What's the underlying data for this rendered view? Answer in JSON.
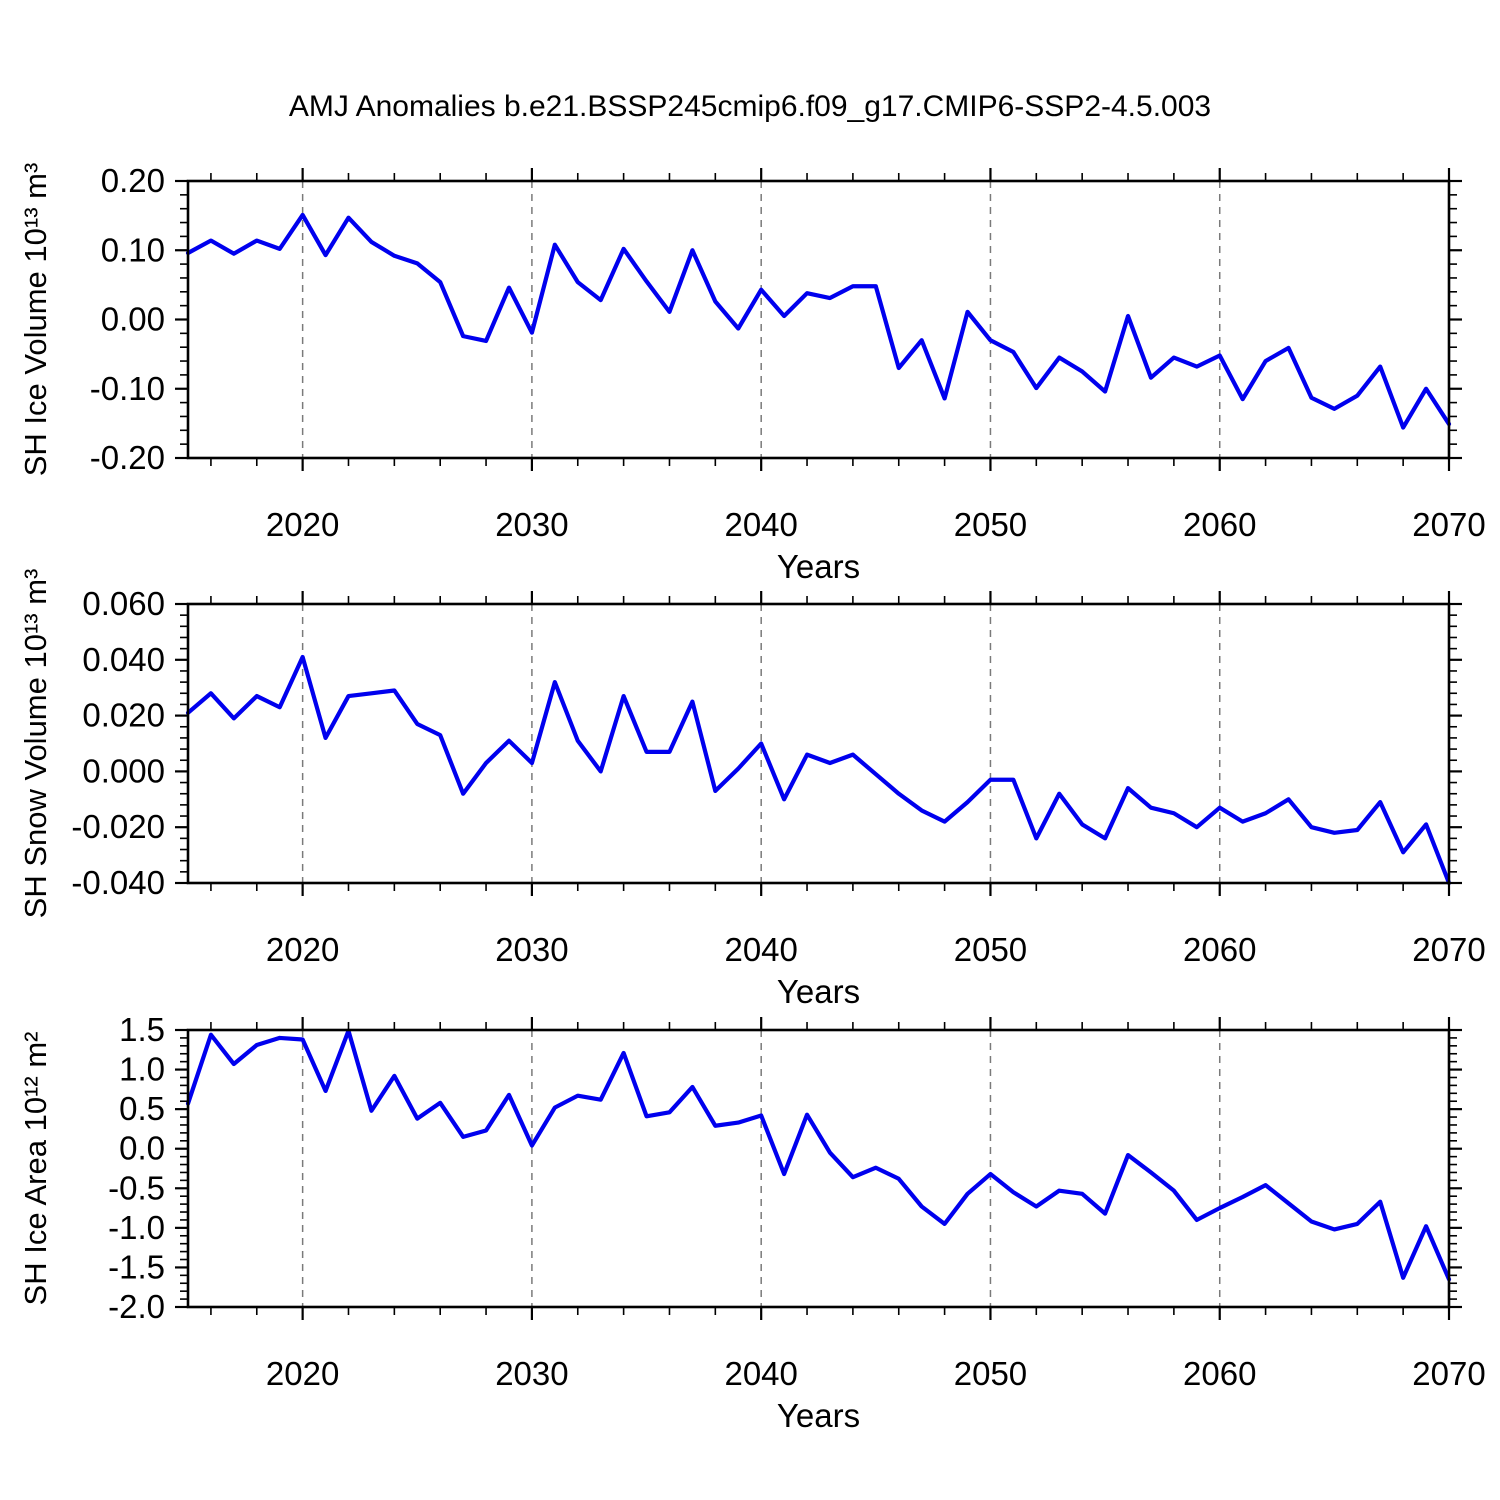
{
  "title": "AMJ Anomalies b.e21.BSSP245cmip6.f09_g17.CMIP6-SSP2-4.5.003",
  "line_color": "#0000EE",
  "grid_color": "#7a7a7a",
  "chart_data": [
    {
      "type": "line",
      "ylabel": "SH Ice Volume 10¹³ m³",
      "xlabel": "Years",
      "x": [
        2015,
        2016,
        2017,
        2018,
        2019,
        2020,
        2021,
        2022,
        2023,
        2024,
        2025,
        2026,
        2027,
        2028,
        2029,
        2030,
        2031,
        2032,
        2033,
        2034,
        2035,
        2036,
        2037,
        2038,
        2039,
        2040,
        2041,
        2042,
        2043,
        2044,
        2045,
        2046,
        2047,
        2048,
        2049,
        2050,
        2051,
        2052,
        2053,
        2054,
        2055,
        2056,
        2057,
        2058,
        2059,
        2060,
        2061,
        2062,
        2063,
        2064,
        2065,
        2066,
        2067,
        2068,
        2069,
        2070
      ],
      "values": [
        0.096,
        0.114,
        0.095,
        0.114,
        0.102,
        0.151,
        0.093,
        0.147,
        0.112,
        0.092,
        0.081,
        0.054,
        -0.024,
        -0.031,
        0.046,
        -0.019,
        0.108,
        0.054,
        0.028,
        0.102,
        0.055,
        0.011,
        0.1,
        0.026,
        -0.013,
        0.043,
        0.005,
        0.038,
        0.031,
        0.048,
        0.048,
        -0.07,
        -0.03,
        -0.114,
        0.011,
        -0.03,
        -0.047,
        -0.099,
        -0.055,
        -0.075,
        -0.104,
        0.005,
        -0.084,
        -0.055,
        -0.068,
        -0.052,
        -0.115,
        -0.06,
        -0.041,
        -0.113,
        -0.129,
        -0.11,
        -0.068,
        -0.156,
        -0.1,
        -0.151
      ],
      "xlim": [
        2015,
        2070
      ],
      "ylim": [
        -0.2,
        0.2
      ],
      "xticks": [
        2020,
        2030,
        2040,
        2050,
        2060,
        2070
      ],
      "xtick_labels": [
        "2020",
        "2030",
        "2040",
        "2050",
        "2060",
        "2070"
      ],
      "xtick_minor_step": 2,
      "ytick_values": [
        0.2,
        0.1,
        0.0,
        -0.1,
        -0.2
      ],
      "ytick_labels": [
        "0.20",
        "0.10",
        "0.00",
        "-0.10",
        "-0.20"
      ],
      "ytick_minor_step": 0.02,
      "grid_x_dashed": [
        2020,
        2030,
        2040,
        2050,
        2060
      ],
      "legend": "none",
      "grid": "vertical-dashed-only"
    },
    {
      "type": "line",
      "ylabel": "SH Snow Volume 10¹³ m³",
      "xlabel": "Years",
      "x": [
        2015,
        2016,
        2017,
        2018,
        2019,
        2020,
        2021,
        2022,
        2023,
        2024,
        2025,
        2026,
        2027,
        2028,
        2029,
        2030,
        2031,
        2032,
        2033,
        2034,
        2035,
        2036,
        2037,
        2038,
        2039,
        2040,
        2041,
        2042,
        2043,
        2044,
        2045,
        2046,
        2047,
        2048,
        2049,
        2050,
        2051,
        2052,
        2053,
        2054,
        2055,
        2056,
        2057,
        2058,
        2059,
        2060,
        2061,
        2062,
        2063,
        2064,
        2065,
        2066,
        2067,
        2068,
        2069,
        2070
      ],
      "values": [
        0.021,
        0.028,
        0.019,
        0.027,
        0.023,
        0.041,
        0.012,
        0.027,
        0.028,
        0.029,
        0.017,
        0.013,
        -0.008,
        0.003,
        0.011,
        0.003,
        0.032,
        0.011,
        0.0,
        0.027,
        0.007,
        0.007,
        0.025,
        -0.007,
        0.001,
        0.01,
        -0.01,
        0.006,
        0.003,
        0.006,
        -0.001,
        -0.008,
        -0.014,
        -0.018,
        -0.011,
        -0.003,
        -0.003,
        -0.024,
        -0.008,
        -0.019,
        -0.024,
        -0.006,
        -0.013,
        -0.015,
        -0.02,
        -0.013,
        -0.018,
        -0.015,
        -0.01,
        -0.02,
        -0.022,
        -0.021,
        -0.011,
        -0.029,
        -0.019,
        -0.04
      ],
      "xlim": [
        2015,
        2070
      ],
      "ylim": [
        -0.04,
        0.06
      ],
      "xticks": [
        2020,
        2030,
        2040,
        2050,
        2060,
        2070
      ],
      "xtick_labels": [
        "2020",
        "2030",
        "2040",
        "2050",
        "2060",
        "2070"
      ],
      "xtick_minor_step": 2,
      "ytick_values": [
        0.06,
        0.04,
        0.02,
        0.0,
        -0.02,
        -0.04
      ],
      "ytick_labels": [
        "0.060",
        "0.040",
        "0.020",
        "0.000",
        "-0.020",
        "-0.040"
      ],
      "ytick_minor_step": 0.004,
      "grid_x_dashed": [
        2020,
        2030,
        2040,
        2050,
        2060
      ],
      "legend": "none",
      "grid": "vertical-dashed-only"
    },
    {
      "type": "line",
      "ylabel": "SH Ice Area 10¹² m²",
      "xlabel": "Years",
      "x": [
        2015,
        2016,
        2017,
        2018,
        2019,
        2020,
        2021,
        2022,
        2023,
        2024,
        2025,
        2026,
        2027,
        2028,
        2029,
        2030,
        2031,
        2032,
        2033,
        2034,
        2035,
        2036,
        2037,
        2038,
        2039,
        2040,
        2041,
        2042,
        2043,
        2044,
        2045,
        2046,
        2047,
        2048,
        2049,
        2050,
        2051,
        2052,
        2053,
        2054,
        2055,
        2056,
        2057,
        2058,
        2059,
        2060,
        2061,
        2062,
        2063,
        2064,
        2065,
        2066,
        2067,
        2068,
        2069,
        2070
      ],
      "values": [
        0.57,
        1.44,
        1.07,
        1.31,
        1.4,
        1.38,
        0.73,
        1.49,
        0.48,
        0.92,
        0.38,
        0.58,
        0.15,
        0.23,
        0.68,
        0.04,
        0.52,
        0.67,
        0.62,
        1.21,
        0.41,
        0.46,
        0.78,
        0.29,
        0.33,
        0.42,
        -0.32,
        0.43,
        -0.05,
        -0.36,
        -0.24,
        -0.38,
        -0.73,
        -0.95,
        -0.57,
        -0.32,
        -0.55,
        -0.73,
        -0.53,
        -0.57,
        -0.82,
        -0.08,
        -0.3,
        -0.53,
        -0.9,
        -0.75,
        -0.61,
        -0.46,
        -0.69,
        -0.92,
        -1.02,
        -0.95,
        -0.67,
        -1.63,
        -0.98,
        -1.65
      ],
      "xlim": [
        2015,
        2070
      ],
      "ylim": [
        -2.0,
        1.5
      ],
      "xticks": [
        2020,
        2030,
        2040,
        2050,
        2060,
        2070
      ],
      "xtick_labels": [
        "2020",
        "2030",
        "2040",
        "2050",
        "2060",
        "2070"
      ],
      "xtick_minor_step": 2,
      "ytick_values": [
        1.5,
        1.0,
        0.5,
        0.0,
        -0.5,
        -1.0,
        -1.5,
        -2.0
      ],
      "ytick_labels": [
        "1.5",
        "1.0",
        "0.5",
        "0.0",
        "-0.5",
        "-1.0",
        "-1.5",
        "-2.0"
      ],
      "ytick_minor_step": 0.1,
      "grid_x_dashed": [
        2020,
        2030,
        2040,
        2050,
        2060
      ],
      "legend": "none",
      "grid": "vertical-dashed-only"
    }
  ]
}
